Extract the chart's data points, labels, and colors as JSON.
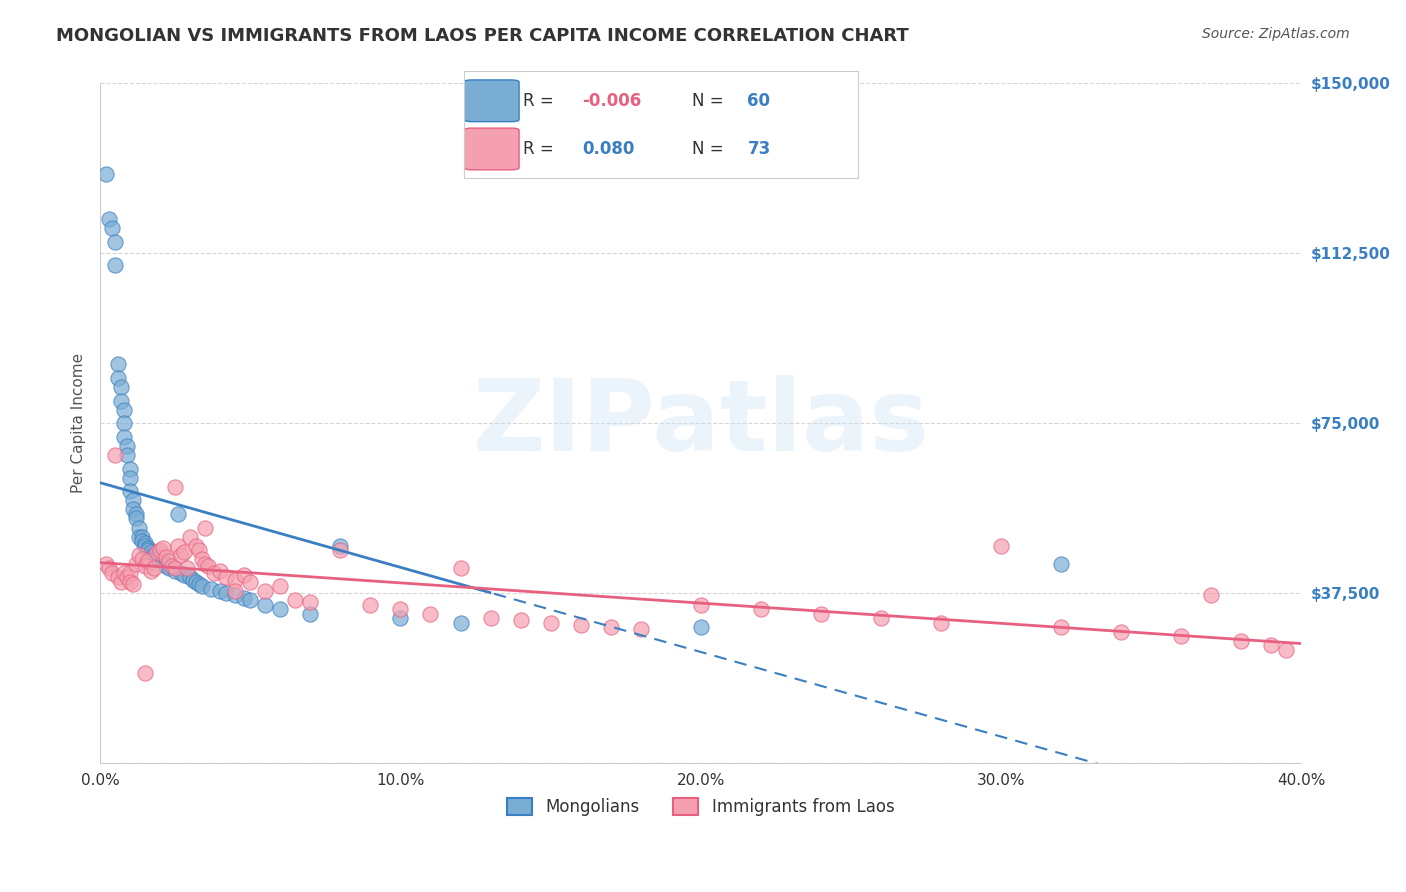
{
  "title": "MONGOLIAN VS IMMIGRANTS FROM LAOS PER CAPITA INCOME CORRELATION CHART",
  "source": "Source: ZipAtlas.com",
  "xlabel": "",
  "ylabel": "Per Capita Income",
  "xlim": [
    0,
    0.4
  ],
  "ylim": [
    0,
    150000
  ],
  "yticks": [
    0,
    37500,
    75000,
    112500,
    150000
  ],
  "ytick_labels": [
    "",
    "$37,500",
    "$75,000",
    "$112,500",
    "$150,000"
  ],
  "xticks": [
    0.0,
    0.1,
    0.2,
    0.3,
    0.4
  ],
  "xtick_labels": [
    "0.0%",
    "10.0%",
    "20.0%",
    "30.0%",
    "40.0%"
  ],
  "blue_R": "-0.006",
  "blue_N": "60",
  "pink_R": "0.080",
  "pink_N": "73",
  "blue_color": "#7aadd4",
  "pink_color": "#f4a0b0",
  "blue_line_color": "#3a7fc1",
  "pink_line_color": "#e86080",
  "legend_label_blue": "Mongolians",
  "legend_label_pink": "Immigrants from Laos",
  "watermark": "ZIPatlas",
  "background_color": "#ffffff",
  "grid_color": "#cccccc",
  "blue_scatter_x": [
    0.002,
    0.003,
    0.004,
    0.005,
    0.005,
    0.006,
    0.006,
    0.007,
    0.007,
    0.008,
    0.008,
    0.008,
    0.009,
    0.009,
    0.01,
    0.01,
    0.01,
    0.011,
    0.011,
    0.012,
    0.012,
    0.013,
    0.013,
    0.014,
    0.014,
    0.015,
    0.015,
    0.016,
    0.016,
    0.017,
    0.018,
    0.019,
    0.02,
    0.021,
    0.022,
    0.022,
    0.023,
    0.025,
    0.026,
    0.027,
    0.028,
    0.03,
    0.031,
    0.032,
    0.033,
    0.034,
    0.037,
    0.04,
    0.042,
    0.045,
    0.048,
    0.05,
    0.055,
    0.06,
    0.07,
    0.08,
    0.1,
    0.12,
    0.2,
    0.32
  ],
  "blue_scatter_y": [
    130000,
    120000,
    118000,
    115000,
    110000,
    88000,
    85000,
    83000,
    80000,
    78000,
    75000,
    72000,
    70000,
    68000,
    65000,
    63000,
    60000,
    58000,
    56000,
    55000,
    54000,
    52000,
    50000,
    50000,
    49000,
    48500,
    48000,
    47500,
    47000,
    46500,
    46000,
    45500,
    45000,
    44500,
    44000,
    43500,
    43000,
    42500,
    55000,
    42000,
    41500,
    41000,
    40500,
    40000,
    39500,
    39000,
    38500,
    38000,
    37500,
    37000,
    36500,
    36000,
    35000,
    34000,
    33000,
    48000,
    32000,
    31000,
    30000,
    44000
  ],
  "pink_scatter_x": [
    0.002,
    0.003,
    0.004,
    0.005,
    0.006,
    0.007,
    0.008,
    0.009,
    0.01,
    0.01,
    0.011,
    0.012,
    0.013,
    0.014,
    0.015,
    0.016,
    0.017,
    0.018,
    0.019,
    0.02,
    0.021,
    0.022,
    0.023,
    0.024,
    0.025,
    0.026,
    0.027,
    0.028,
    0.029,
    0.03,
    0.032,
    0.033,
    0.034,
    0.035,
    0.036,
    0.038,
    0.04,
    0.042,
    0.045,
    0.048,
    0.05,
    0.055,
    0.06,
    0.065,
    0.07,
    0.08,
    0.09,
    0.1,
    0.11,
    0.12,
    0.13,
    0.14,
    0.15,
    0.16,
    0.17,
    0.18,
    0.2,
    0.22,
    0.24,
    0.26,
    0.28,
    0.3,
    0.32,
    0.34,
    0.36,
    0.37,
    0.38,
    0.39,
    0.395,
    0.015,
    0.025,
    0.035,
    0.045
  ],
  "pink_scatter_y": [
    44000,
    43000,
    42000,
    68000,
    41000,
    40000,
    42000,
    41000,
    42000,
    40000,
    39500,
    44000,
    46000,
    45000,
    43500,
    44500,
    42500,
    43000,
    46500,
    47000,
    47500,
    45500,
    44500,
    43500,
    43000,
    48000,
    46000,
    46500,
    43000,
    50000,
    48000,
    47000,
    45000,
    44000,
    43500,
    42000,
    42500,
    41000,
    40500,
    41500,
    40000,
    38000,
    39000,
    36000,
    35500,
    47000,
    35000,
    34000,
    33000,
    43000,
    32000,
    31500,
    31000,
    30500,
    30000,
    29500,
    35000,
    34000,
    33000,
    32000,
    31000,
    48000,
    30000,
    29000,
    28000,
    37000,
    27000,
    26000,
    25000,
    20000,
    61000,
    52000,
    38000
  ]
}
